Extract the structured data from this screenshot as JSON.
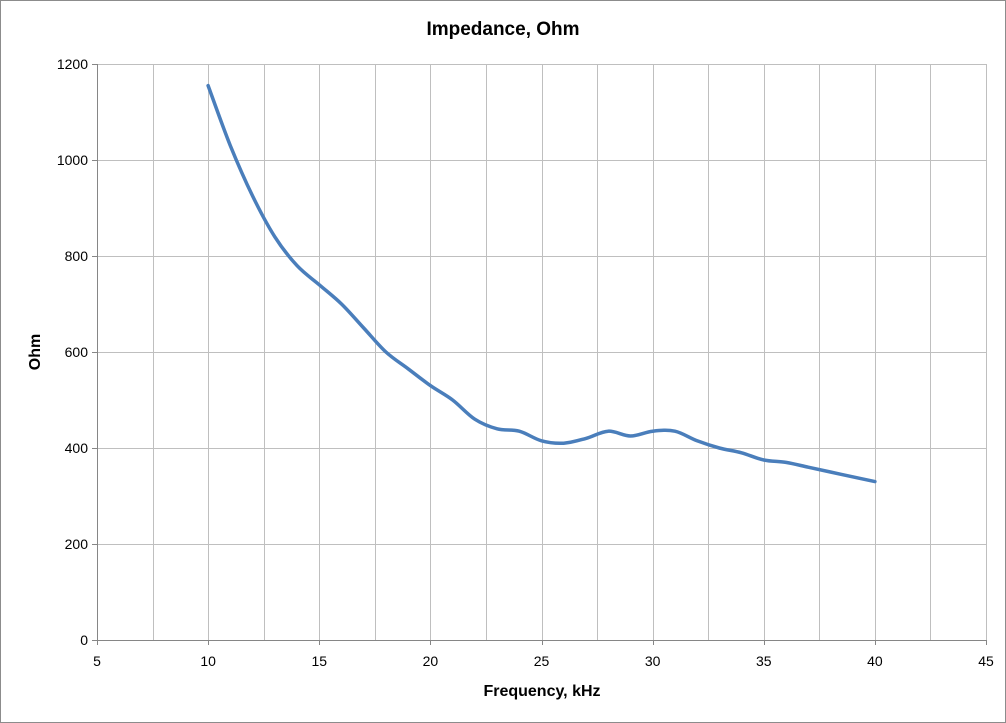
{
  "chart_data": {
    "type": "line",
    "title": "Impedance, Ohm",
    "xlabel": "Frequency, kHz",
    "ylabel": "Ohm",
    "xlim": [
      5,
      45
    ],
    "ylim": [
      0,
      1200
    ],
    "xticks": [
      5,
      10,
      15,
      20,
      25,
      30,
      35,
      40,
      45
    ],
    "yticks": [
      0,
      200,
      400,
      600,
      800,
      1000,
      1200
    ],
    "grid": true,
    "legend": "none",
    "series": [
      {
        "color": "#4a7ebb",
        "x": [
          10,
          11,
          12,
          13,
          14,
          15,
          16,
          17,
          18,
          19,
          20,
          21,
          22,
          23,
          24,
          25,
          26,
          27,
          28,
          29,
          30,
          31,
          32,
          33,
          34,
          35,
          36,
          37,
          38,
          39,
          40
        ],
        "y": [
          1155,
          1030,
          925,
          840,
          780,
          740,
          700,
          650,
          600,
          565,
          530,
          500,
          460,
          440,
          435,
          415,
          410,
          420,
          435,
          425,
          435,
          435,
          415,
          400,
          390,
          375,
          370,
          360,
          350,
          340,
          330
        ]
      }
    ]
  }
}
